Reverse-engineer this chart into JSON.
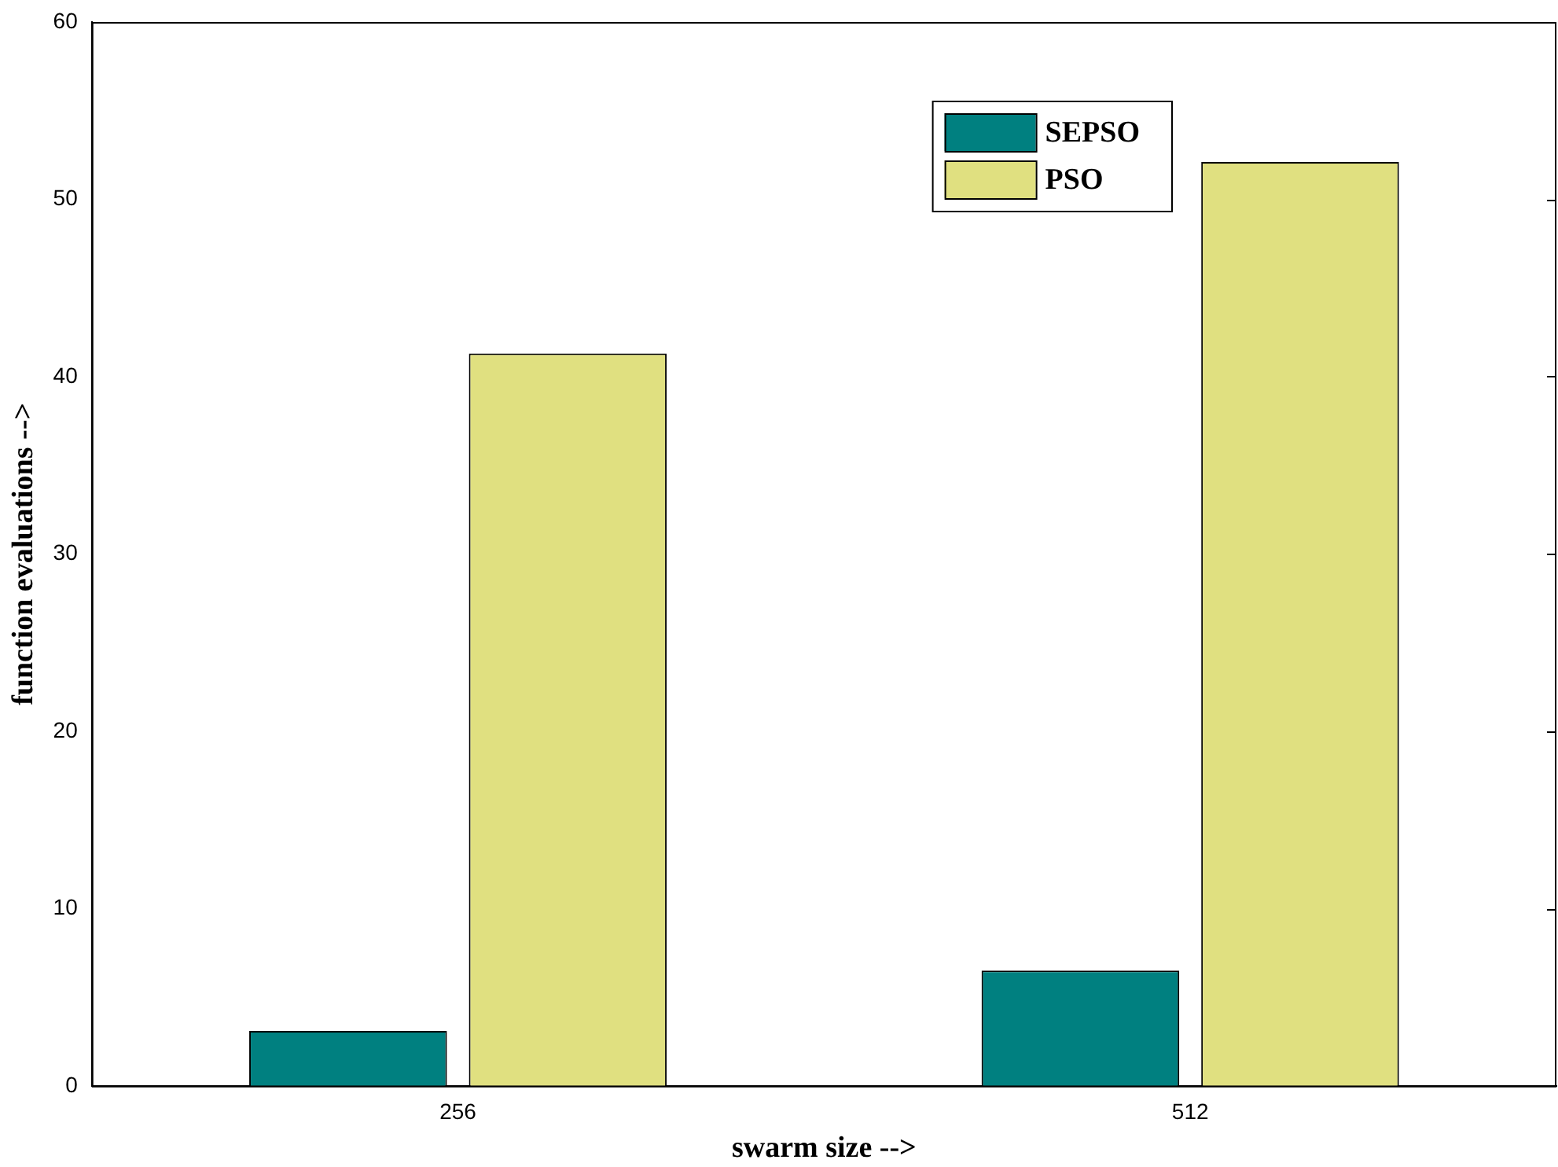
{
  "chart_data": {
    "type": "bar",
    "xlabel": "swarm size -->",
    "ylabel": "function evaluations -->",
    "categories": [
      "256",
      "512"
    ],
    "series": [
      {
        "name": "SEPSO",
        "color": "#008080",
        "values": [
          3.1,
          6.5
        ]
      },
      {
        "name": "PSO",
        "color": "#e0e080",
        "values": [
          41.3,
          52.1
        ]
      }
    ],
    "ylim": [
      0,
      60
    ],
    "yticks": [
      0,
      10,
      20,
      30,
      40,
      50,
      60
    ],
    "grid": false,
    "legend": "top right"
  }
}
